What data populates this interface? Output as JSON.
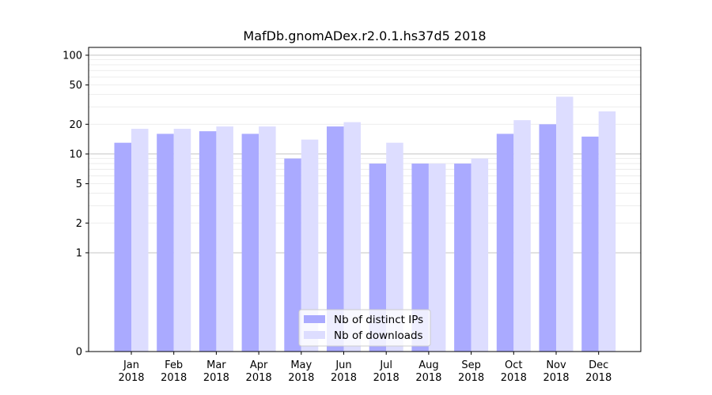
{
  "chart_data": {
    "type": "bar",
    "title": "MafDb.gnomADex.r2.0.1.hs37d5 2018",
    "xlabel": "",
    "ylabel": "",
    "yscale": "symlog",
    "ylim": [
      0,
      120
    ],
    "yticks": [
      0,
      1,
      2,
      5,
      10,
      20,
      50,
      100
    ],
    "ytick_labels": [
      "0",
      "1",
      "2",
      "5",
      "10",
      "20",
      "50",
      "100"
    ],
    "categories": [
      "Jan\n2018",
      "Feb\n2018",
      "Mar\n2018",
      "Apr\n2018",
      "May\n2018",
      "Jun\n2018",
      "Jul\n2018",
      "Aug\n2018",
      "Sep\n2018",
      "Oct\n2018",
      "Nov\n2018",
      "Dec\n2018"
    ],
    "series": [
      {
        "name": "Nb of distinct IPs",
        "color": "#aaaaff",
        "values": [
          13,
          16,
          17,
          16,
          9,
          19,
          8,
          8,
          8,
          16,
          20,
          15
        ]
      },
      {
        "name": "Nb of downloads",
        "color": "#ddddff",
        "values": [
          18,
          18,
          19,
          19,
          14,
          21,
          13,
          8,
          9,
          22,
          38,
          27
        ]
      }
    ],
    "legend": {
      "position": "lower-center"
    },
    "grid": {
      "y_major": true,
      "y_minor": true
    }
  }
}
